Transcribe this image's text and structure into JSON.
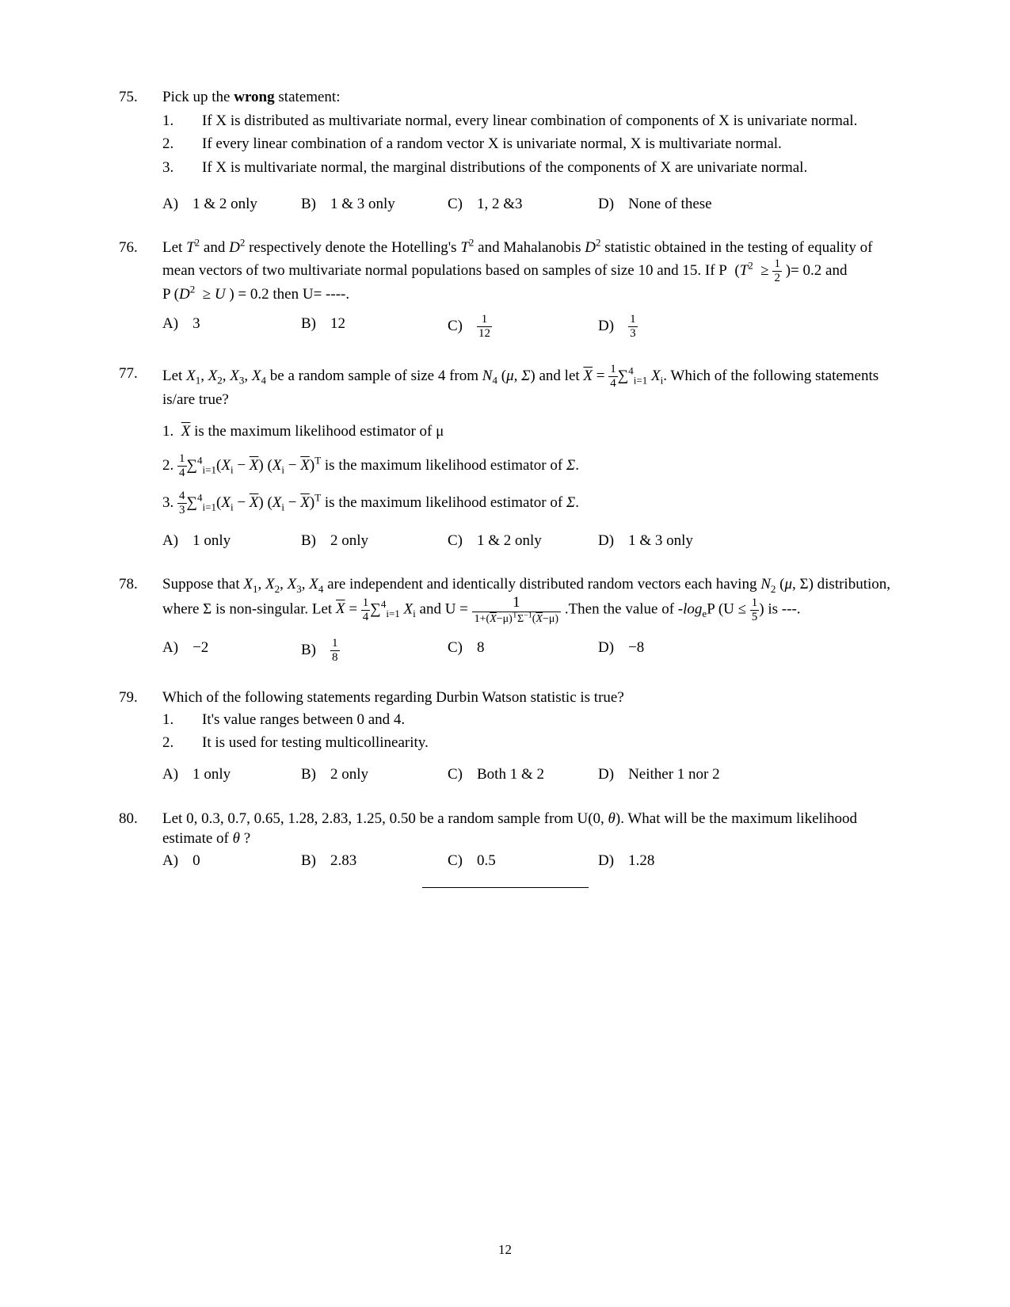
{
  "page_number": "12",
  "q75": {
    "num": "75.",
    "stem": "Pick up the <b>wrong</b> statement:",
    "s1n": "1.",
    "s1": "If X is distributed as multivariate normal, every linear combination of components of X is univariate normal.",
    "s2n": "2.",
    "s2": "If every linear combination of a random vector X is univariate normal, X is multivariate normal.",
    "s3n": "3.",
    "s3": "If X is multivariate normal, the marginal distributions of the components of X are univariate normal.",
    "oA": "1 & 2 only",
    "oB": "1 & 3 only",
    "oC": "1, 2 &3",
    "oD": "None of these"
  },
  "q76": {
    "num": "76.",
    "stem_a": "Let <span class=\"italic\">T</span><sup>2</sup> and <span class=\"italic\">D</span><sup>2</sup> respectively denote the Hotelling's <span class=\"italic\">T</span><sup>2</sup> and Mahalanobis <span class=\"italic\">D</span><sup>2</sup> statistic obtained in the testing of equality of mean vectors of two multivariate normal populations based on samples of size 10 and 15. If P&nbsp; (<span class=\"italic\">T</span><sup>2</sup> &nbsp;&ge;&nbsp;<span class=\"frac\"><span class=\"num\">1</span><span class=\"den\">2</span></span>&nbsp;)= 0.2 and",
    "stem_b": "P (<span class=\"italic\">D</span><sup>2</sup> &nbsp;&ge; <span class=\"italic\">U</span>&nbsp;) = 0.2 then U= ----.",
    "oA": "3",
    "oB": "12",
    "oC": "<span class=\"frac\"><span class=\"num\">1</span><span class=\"den\">12</span></span>",
    "oD": "<span class=\"frac\"><span class=\"num\">1</span><span class=\"den\">3</span></span>"
  },
  "q77": {
    "num": "77.",
    "stem": "Let <span class=\"italic\">X</span><sub>1</sub>, <span class=\"italic\">X</span><sub>2</sub>, <span class=\"italic\">X</span><sub>3</sub>, <span class=\"italic\">X</span><sub>4</sub> be a random sample of size 4 from <span class=\"italic\">N</span><sub>4</sub> (<span class=\"italic\">&mu;</span>, <span class=\"italic\">&Sigma;</span>) and let <span class=\"italic bar\">X</span> = <span class=\"frac\"><span class=\"num\">1</span><span class=\"den\">4</span></span>&sum;<sup>4</sup><sub>i=1</sub> <span class=\"italic\">X</span><sub>i</sub>. Which of the following statements is/are true?",
    "s1": "1. &nbsp;<span class=\"italic bar\">X</span> is the maximum likelihood estimator of &mu;",
    "s2": "2. <span class=\"frac\"><span class=\"num\">1</span><span class=\"den\">4</span></span>&sum;<sup>4</sup><sub>i=1</sub>(<span class=\"italic\">X</span><sub>i</sub> &minus; <span class=\"italic bar\">X</span>) (<span class=\"italic\">X</span><sub>i</sub> &minus; <span class=\"italic bar\">X</span>)<sup>T</sup> is the maximum likelihood estimator of <span class=\"italic\">&Sigma;</span>.",
    "s3": "3. <span class=\"frac\"><span class=\"num\">4</span><span class=\"den\">3</span></span>&sum;<sup>4</sup><sub>i=1</sub>(<span class=\"italic\">X</span><sub>i</sub> &minus; <span class=\"italic bar\">X</span>) (<span class=\"italic\">X</span><sub>i</sub> &minus; <span class=\"italic bar\">X</span>)<sup>T</sup> is the maximum likelihood estimator of <span class=\"italic\">&Sigma;</span>.",
    "oA": "1 only",
    "oB": "2 only",
    "oC": "1 & 2 only",
    "oD": "1 & 3 only"
  },
  "q78": {
    "num": "78.",
    "stem": "Suppose that <span class=\"italic\">X</span><sub>1</sub>, <span class=\"italic\">X</span><sub>2</sub>, <span class=\"italic\">X</span><sub>3</sub>, <span class=\"italic\">X</span><sub>4</sub> are independent and identically distributed random vectors each having <span class=\"italic\">N</span><sub>2</sub> (<span class=\"italic\">&mu;</span>, &Sigma;) distribution, where &Sigma; is non-singular. Let <span class=\"italic bar\">X</span> = <span class=\"frac\"><span class=\"num\">1</span><span class=\"den\">4</span></span>&sum;<sup>4</sup><sub>i=1</sub> <span class=\"italic\">X</span><sub>i</sub> and U = <span class=\"fracbig\"><span class=\"num\">1</span><span class=\"den\" style=\"font-size:14px;\">1+(<span class=\"italic bar\">X</span>&minus;&mu;)<sup style=\"font-size:10px;\">T</sup>&Sigma;<sup style=\"font-size:10px;\">&minus;1</sup>(<span class=\"italic bar\">X</span>&minus;&mu;)</span></span> .Then the value of -<span class=\"italic\">log</span><sub>e</sub>P (U &le; <span class=\"frac\"><span class=\"num\">1</span><span class=\"den\">5</span></span>) is ---.",
    "oA": "&minus;2",
    "oB": "<span class=\"frac\"><span class=\"num\">1</span><span class=\"den\">8</span></span>",
    "oC": "8",
    "oD": "&minus;8"
  },
  "q79": {
    "num": "79.",
    "stem": "Which of the following statements regarding Durbin Watson statistic is true?",
    "s1n": "1.",
    "s1": "It's value ranges between 0 and 4.",
    "s2n": "2.",
    "s2": "It is used for testing multicollinearity.",
    "oA": "1 only",
    "oB": "2 only",
    "oC": "Both 1 & 2",
    "oD": "Neither 1 nor 2"
  },
  "q80": {
    "num": "80.",
    "stem": "Let 0, 0.3, 0.7, 0.65, 1.28, 2.83, 1.25, 0.50 be a random sample from U(0, <span class=\"italic\">&theta;</span>). What will be the maximum likelihood estimate of <span class=\"italic\">&theta;</span> ?",
    "oA": "0",
    "oB": "2.83",
    "oC": "0.5",
    "oD": "1.28"
  },
  "opt_labels": {
    "A": "A)",
    "B": "B)",
    "C": "C)",
    "D": "D)"
  }
}
